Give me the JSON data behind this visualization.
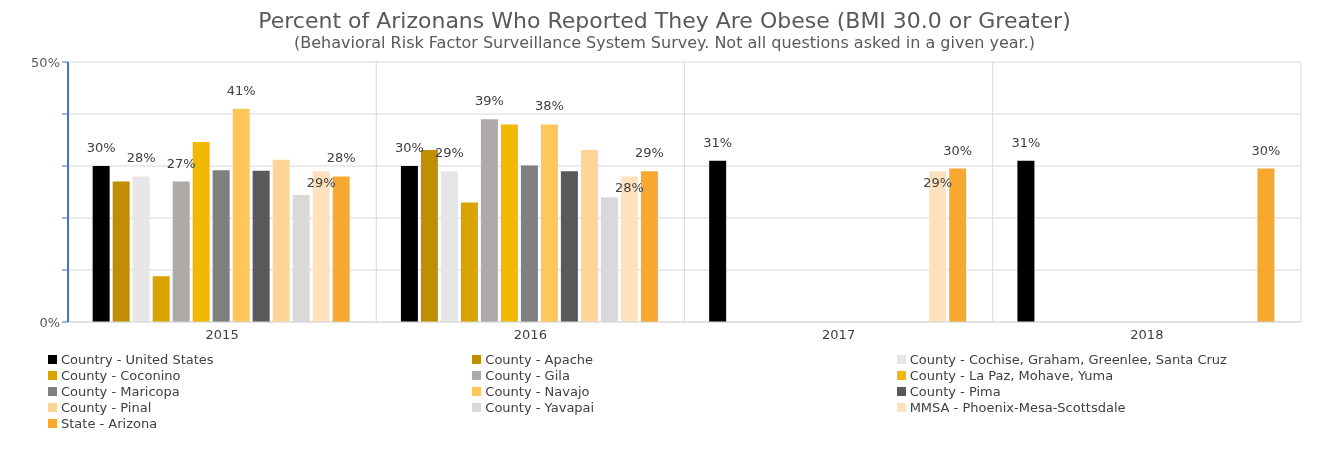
{
  "chart_data": {
    "type": "bar",
    "title": "Percent of Arizonans Who Reported They Are Obese (BMI 30.0 or Greater)",
    "subtitle": "(Behavioral Risk Factor Surveillance System Survey. Not all questions asked in a given year.)",
    "categories": [
      "2015",
      "2016",
      "2017",
      "2018"
    ],
    "ylim": [
      0,
      50
    ],
    "yticks": [
      {
        "value": 0,
        "label": "0%"
      },
      {
        "value": 10,
        "label": null
      },
      {
        "value": 20,
        "label": null
      },
      {
        "value": 30,
        "label": null
      },
      {
        "value": 40,
        "label": null
      },
      {
        "value": 50,
        "label": "50%"
      }
    ],
    "grid": true,
    "legend": "bottom",
    "series": [
      {
        "name": "Country - United States",
        "color": "#000000",
        "values": [
          30,
          30,
          31,
          31
        ],
        "value_labels": [
          "30%",
          "30%",
          "31%",
          "31%"
        ]
      },
      {
        "name": "County - Apache",
        "color": "#bf8f00",
        "values": [
          27,
          33.1,
          null,
          null
        ]
      },
      {
        "name": "County - Cochise, Graham, Greenlee, Santa Cruz",
        "color": "#e7e6e6",
        "values": [
          28,
          29,
          null,
          null
        ],
        "value_labels": [
          "28%",
          "29%",
          null,
          null
        ]
      },
      {
        "name": "County - Coconino",
        "color": "#d9a300",
        "values": [
          8.8,
          23,
          null,
          null
        ]
      },
      {
        "name": "County - Gila",
        "color": "#aeaaaa",
        "values": [
          27,
          39,
          null,
          null
        ],
        "value_labels": [
          "27%",
          "39%",
          null,
          null
        ]
      },
      {
        "name": "County - La Paz, Mohave, Yuma",
        "color": "#f2b800",
        "values": [
          34.6,
          38,
          null,
          null
        ]
      },
      {
        "name": "County - Maricopa",
        "color": "#7f7f7f",
        "values": [
          29.2,
          30.1,
          null,
          null
        ]
      },
      {
        "name": "County - Navajo",
        "color": "#ffc659",
        "values": [
          41,
          38,
          null,
          null
        ],
        "value_labels": [
          "41%",
          "38%",
          null,
          null
        ]
      },
      {
        "name": "County - Pima",
        "color": "#595959",
        "values": [
          29.1,
          29,
          null,
          null
        ]
      },
      {
        "name": "County - Pinal",
        "color": "#ffd597",
        "values": [
          31.2,
          33.1,
          null,
          null
        ]
      },
      {
        "name": "County - Yavapai",
        "color": "#d9d9d9",
        "values": [
          24.4,
          24,
          null,
          null
        ]
      },
      {
        "name": "MMSA - Phoenix-Mesa-Scottsdale",
        "color": "#ffe2bd",
        "values": [
          29,
          28,
          29,
          null
        ],
        "value_labels": [
          "29%",
          "28%",
          "29%",
          null
        ]
      },
      {
        "name": "State - Arizona",
        "color": "#f9a82f",
        "values": [
          28,
          29,
          29.5,
          29.5
        ],
        "value_labels": [
          "28%",
          "29%",
          "30%",
          "30%"
        ]
      }
    ]
  }
}
